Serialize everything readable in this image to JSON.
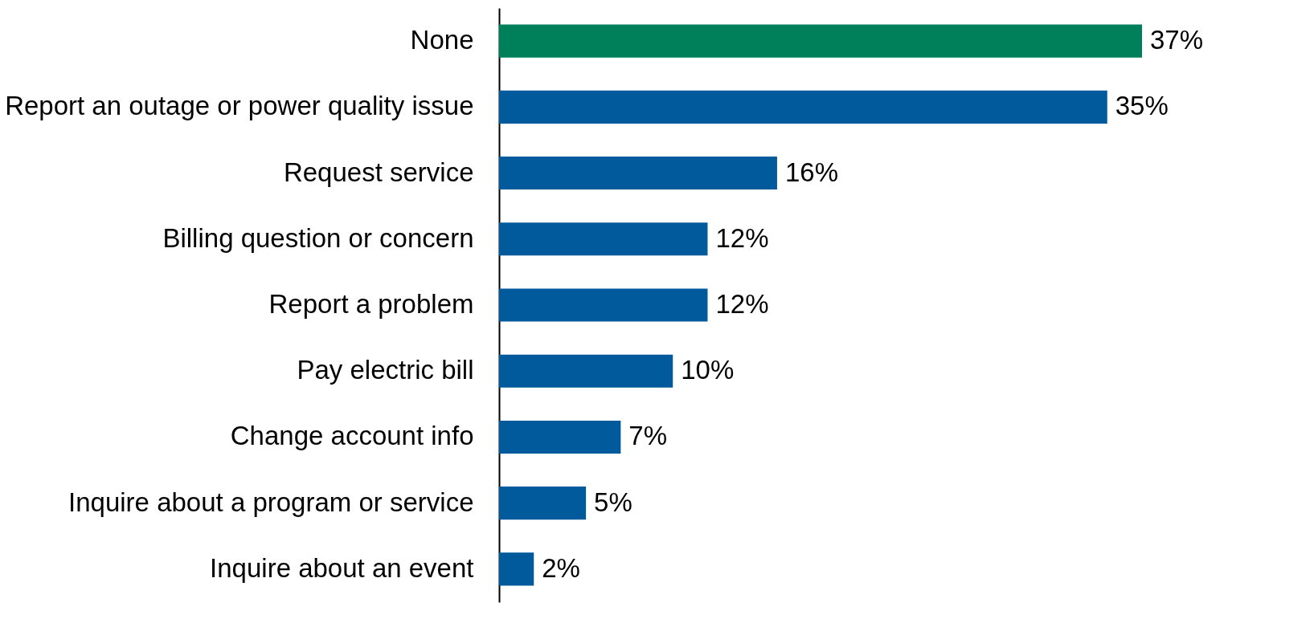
{
  "chart_data": {
    "type": "bar",
    "orientation": "horizontal",
    "categories": [
      "None",
      "Report an outage or power quality issue",
      "Request service",
      "Billing question or concern",
      "Report a problem",
      "Pay electric bill",
      "Change account info",
      "Inquire about a program or service",
      "Inquire about an event"
    ],
    "values": [
      37,
      35,
      16,
      12,
      12,
      10,
      7,
      5,
      2
    ],
    "colors": [
      "#00805a",
      "#005a9c",
      "#005a9c",
      "#005a9c",
      "#005a9c",
      "#005a9c",
      "#005a9c",
      "#005a9c",
      "#005a9c"
    ],
    "value_labels": [
      "37%",
      "35%",
      "16%",
      "12%",
      "12%",
      "10%",
      "7%",
      "5%",
      "2%"
    ],
    "grid": false,
    "legend": false
  }
}
